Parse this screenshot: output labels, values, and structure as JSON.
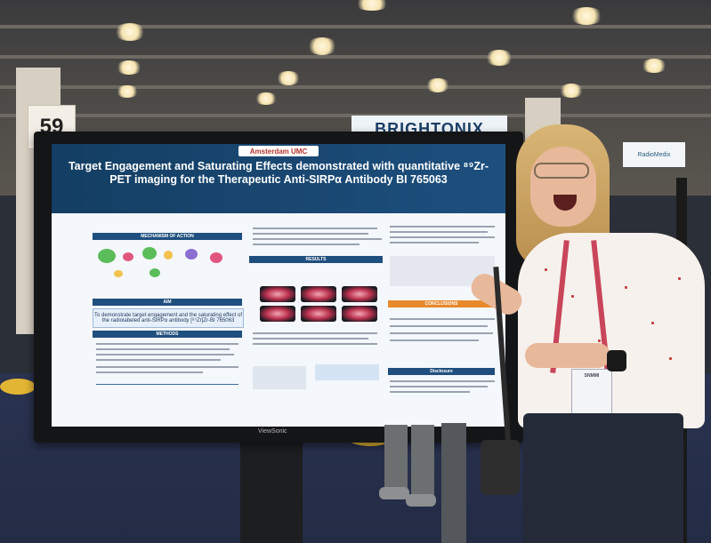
{
  "booth_number": "59",
  "brand_sign": "BRIGHTONIX",
  "right_sign_text": "RadioMedix",
  "poster": {
    "logo": "Amsterdam UMC",
    "title": "Target Engagement and Saturating Effects demonstrated with quantitative ⁸⁹Zr-PET imaging for the Therapeutic Anti-SIRPα Antibody BI 765063",
    "sections": {
      "mechanism": "MECHANISM OF ACTION",
      "aim": "AIM",
      "methods": "METHODS",
      "results": "RESULTS",
      "conclusion": "CONCLUSIONS",
      "disclosure": "Disclosure"
    },
    "aim_text": "To demonstrate target engagement and the saturating effect of the radiolabeled anti-SIRPα antibody [⁸⁹Zr]Zr-BI 765063"
  },
  "monitor_brand": "ViewSonic",
  "badge_text": "SNMMI"
}
